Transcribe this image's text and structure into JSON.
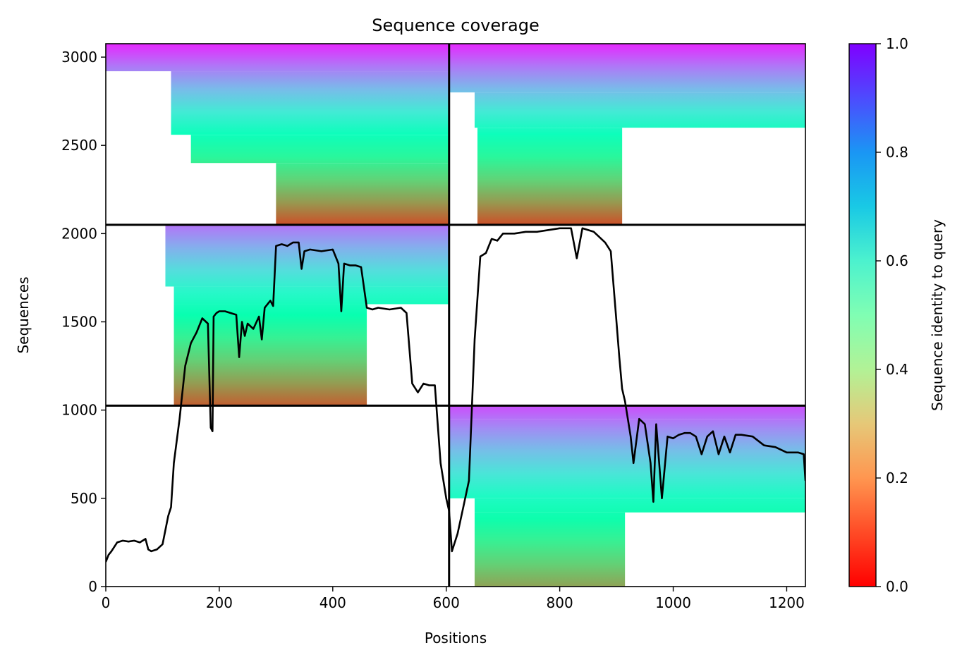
{
  "chart_data": {
    "type": "heatmap",
    "title": "Sequence coverage",
    "xlabel": "Positions",
    "ylabel": "Sequences",
    "xlim": [
      0,
      1233
    ],
    "ylim": [
      0,
      3076
    ],
    "xticks": [
      "0",
      "200",
      "400",
      "600",
      "800",
      "1000",
      "1200"
    ],
    "xtick_values": [
      0,
      200,
      400,
      600,
      800,
      1000,
      1200
    ],
    "yticks": [
      "0",
      "500",
      "1000",
      "1500",
      "2000",
      "2500",
      "3000"
    ],
    "ytick_values": [
      0,
      500,
      1000,
      1500,
      2000,
      2500,
      3000
    ],
    "colormap": "rainbow_r",
    "colorbar": {
      "label": "Sequence identity to query",
      "range": [
        0,
        1
      ],
      "ticks": [
        "0.0",
        "0.2",
        "0.4",
        "0.6",
        "0.8",
        "1.0"
      ],
      "tick_values": [
        0,
        0.2,
        0.4,
        0.6,
        0.8,
        1.0
      ]
    },
    "block_boundaries": {
      "x": [
        605
      ],
      "y": [
        1025,
        2050
      ]
    },
    "blocks": [
      {
        "x0": 0,
        "x1": 605,
        "y0": 2050,
        "y1": 3076,
        "coverage": [
          [
            0,
            110,
            2920,
            3076
          ],
          [
            110,
            605,
            2920,
            3076
          ],
          [
            115,
            605,
            2560,
            2920
          ],
          [
            150,
            605,
            2400,
            2560
          ],
          [
            300,
            605,
            2050,
            2400
          ]
        ],
        "identity_top": 0.95,
        "identity_bottom": 0.1
      },
      {
        "x0": 605,
        "x1": 1233,
        "y0": 2050,
        "y1": 3076,
        "coverage": [
          [
            605,
            1233,
            2800,
            3076
          ],
          [
            650,
            1233,
            2600,
            2800
          ],
          [
            655,
            910,
            2050,
            2600
          ]
        ],
        "identity_top": 0.95,
        "identity_bottom": 0.1
      },
      {
        "x0": 0,
        "x1": 605,
        "y0": 1025,
        "y1": 2050,
        "coverage": [
          [
            105,
            605,
            1700,
            2050
          ],
          [
            120,
            605,
            1600,
            1700
          ],
          [
            120,
            460,
            1025,
            1600
          ]
        ],
        "identity_top": 0.85,
        "identity_bottom": 0.12
      },
      {
        "x0": 605,
        "x1": 1233,
        "y0": 0,
        "y1": 1025,
        "coverage": [
          [
            605,
            1233,
            950,
            1025
          ],
          [
            605,
            1233,
            500,
            950
          ],
          [
            650,
            1233,
            420,
            500
          ],
          [
            650,
            915,
            0,
            420
          ]
        ],
        "identity_top": 0.9,
        "identity_bottom": 0.22
      }
    ],
    "coverage_line": {
      "name": "",
      "x": [
        0,
        5,
        10,
        20,
        30,
        40,
        50,
        60,
        70,
        75,
        80,
        90,
        100,
        110,
        115,
        120,
        130,
        140,
        150,
        160,
        170,
        180,
        185,
        188,
        190,
        195,
        200,
        210,
        220,
        230,
        235,
        240,
        245,
        250,
        260,
        270,
        275,
        280,
        290,
        295,
        300,
        310,
        320,
        330,
        340,
        345,
        350,
        360,
        380,
        400,
        410,
        415,
        420,
        430,
        440,
        450,
        460,
        470,
        480,
        500,
        520,
        530,
        540,
        550,
        560,
        570,
        580,
        590,
        600,
        605,
        610,
        620,
        630,
        640,
        650,
        660,
        670,
        680,
        690,
        700,
        720,
        740,
        760,
        780,
        800,
        820,
        830,
        840,
        860,
        880,
        890,
        900,
        905,
        910,
        915,
        920,
        925,
        930,
        940,
        950,
        960,
        965,
        970,
        980,
        990,
        1000,
        1010,
        1020,
        1030,
        1040,
        1050,
        1060,
        1070,
        1080,
        1090,
        1100,
        1110,
        1120,
        1140,
        1160,
        1180,
        1200,
        1220,
        1230,
        1233
      ],
      "y": [
        140,
        180,
        200,
        250,
        260,
        255,
        260,
        250,
        270,
        210,
        200,
        210,
        240,
        400,
        450,
        700,
        950,
        1250,
        1380,
        1440,
        1520,
        1490,
        900,
        880,
        1530,
        1550,
        1560,
        1560,
        1550,
        1540,
        1300,
        1500,
        1420,
        1490,
        1460,
        1530,
        1400,
        1580,
        1620,
        1590,
        1930,
        1940,
        1930,
        1950,
        1950,
        1800,
        1900,
        1910,
        1900,
        1910,
        1830,
        1560,
        1830,
        1820,
        1820,
        1810,
        1580,
        1570,
        1580,
        1570,
        1580,
        1550,
        1150,
        1100,
        1150,
        1140,
        1140,
        700,
        500,
        430,
        200,
        300,
        450,
        600,
        1400,
        1870,
        1890,
        1970,
        1960,
        2000,
        2000,
        2010,
        2010,
        2020,
        2030,
        2030,
        1860,
        2030,
        2010,
        1950,
        1900,
        1500,
        1300,
        1120,
        1050,
        950,
        850,
        700,
        950,
        920,
        700,
        480,
        920,
        500,
        850,
        840,
        860,
        870,
        870,
        850,
        750,
        850,
        880,
        750,
        850,
        760,
        860,
        860,
        850,
        800,
        790,
        760,
        760,
        750,
        600
      ]
    }
  }
}
